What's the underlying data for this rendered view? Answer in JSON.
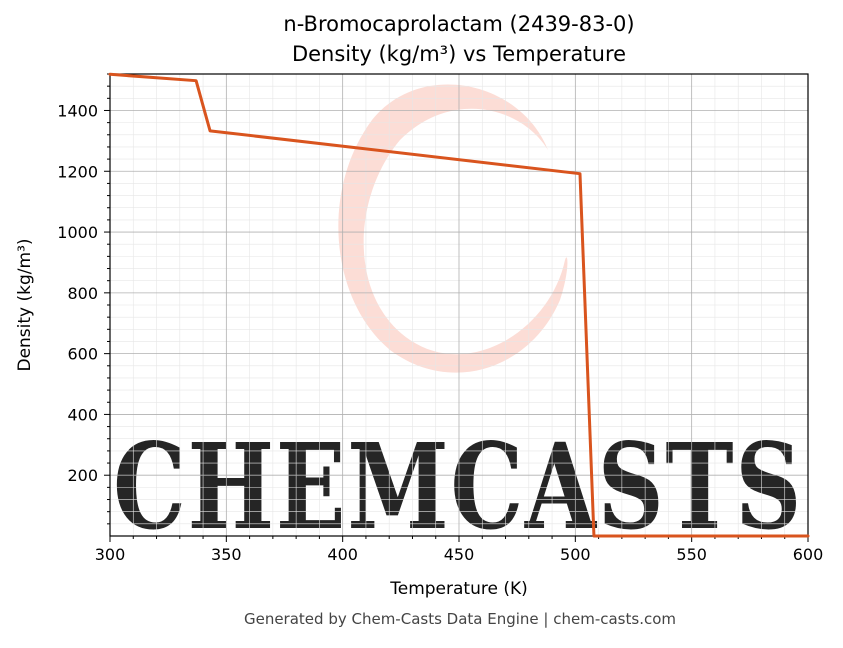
{
  "chart_data": {
    "type": "line",
    "title": "n-Bromocaprolactam (2439-83-0)",
    "subtitle": "Density (kg/m³) vs Temperature",
    "xlabel": "Temperature (K)",
    "ylabel": "Density (kg/m³)",
    "xlim": [
      300,
      600
    ],
    "ylim": [
      0,
      1520
    ],
    "xticks": [
      300,
      350,
      400,
      450,
      500,
      550,
      600
    ],
    "yticks": [
      200,
      400,
      600,
      800,
      1000,
      1200,
      1400
    ],
    "grid": true,
    "series": [
      {
        "x": [
          300,
          337,
          343,
          502,
          508,
          600
        ],
        "y": [
          1519,
          1498,
          1333,
          1192,
          0,
          0
        ]
      }
    ],
    "watermark": "CHEMCASTS",
    "footer": "Generated by Chem-Casts Data Engine | chem-casts.com"
  },
  "colors": {
    "line": "#d9541e",
    "watermark": "#fcd7cf",
    "grid_major": "#b0b0b0",
    "grid_minor": "#e6e6e6"
  }
}
